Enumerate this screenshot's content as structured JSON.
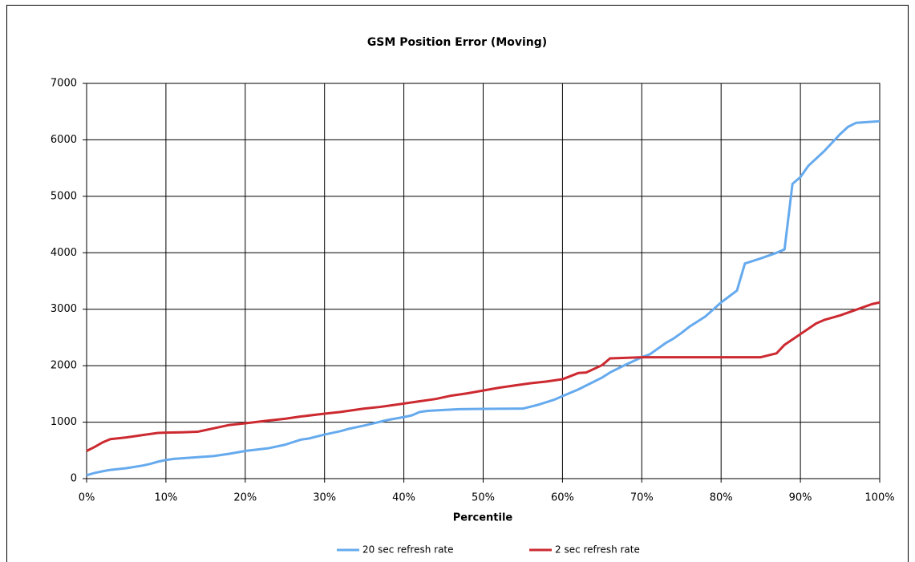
{
  "chart_data": {
    "type": "line",
    "title": "GSM Position Error (Moving)",
    "x_label": "Percentile",
    "xlim": [
      0,
      100
    ],
    "xticks": [
      {
        "value": 0,
        "label": "0%"
      },
      {
        "value": 10,
        "label": "10%"
      },
      {
        "value": 20,
        "label": "20%"
      },
      {
        "value": 30,
        "label": "30%"
      },
      {
        "value": 40,
        "label": "40%"
      },
      {
        "value": 50,
        "label": "50%"
      },
      {
        "value": 60,
        "label": "60%"
      },
      {
        "value": 70,
        "label": "70%"
      },
      {
        "value": 80,
        "label": "80%"
      },
      {
        "value": 90,
        "label": "90%"
      },
      {
        "value": 100,
        "label": "100%"
      }
    ],
    "ylim": [
      0,
      7000
    ],
    "yticks": [
      0,
      1000,
      2000,
      3000,
      4000,
      5000,
      6000,
      7000
    ],
    "grid": true,
    "legend": "bottom",
    "series": [
      {
        "name": "20 sec refresh rate",
        "color": "#66aaee",
        "x": [
          0,
          1,
          2,
          3,
          5,
          7,
          8,
          9,
          10,
          11,
          14,
          16,
          18,
          20,
          23,
          25,
          27,
          28,
          30,
          32,
          33,
          35,
          38,
          40,
          41,
          42,
          43,
          45,
          47,
          50,
          55,
          57,
          59,
          60,
          62,
          64,
          65,
          66,
          68,
          70,
          71,
          73,
          74,
          75,
          76,
          78,
          80,
          82,
          83,
          85,
          87,
          88,
          89,
          90,
          91,
          93,
          95,
          96,
          97,
          100
        ],
        "values": [
          60,
          100,
          130,
          155,
          185,
          230,
          260,
          300,
          330,
          350,
          380,
          400,
          440,
          490,
          540,
          600,
          690,
          710,
          780,
          840,
          880,
          940,
          1040,
          1090,
          1120,
          1180,
          1200,
          1215,
          1230,
          1235,
          1240,
          1310,
          1400,
          1460,
          1580,
          1720,
          1790,
          1880,
          2020,
          2150,
          2200,
          2400,
          2480,
          2580,
          2690,
          2870,
          3120,
          3330,
          3810,
          3900,
          4000,
          4060,
          5220,
          5340,
          5540,
          5800,
          6100,
          6230,
          6300,
          6330
        ]
      },
      {
        "name": "2 sec refresh rate",
        "color": "#cc2a30",
        "x": [
          0,
          1,
          2,
          3,
          5,
          7,
          9,
          10,
          12,
          14,
          16,
          18,
          20,
          23,
          25,
          27,
          30,
          32,
          35,
          37,
          40,
          42,
          44,
          46,
          48,
          50,
          52,
          54,
          56,
          58,
          60,
          62,
          63,
          65,
          66,
          70,
          75,
          80,
          85,
          87,
          88,
          90,
          92,
          93,
          95,
          97,
          99,
          100
        ],
        "values": [
          490,
          560,
          640,
          700,
          730,
          770,
          810,
          815,
          820,
          830,
          890,
          950,
          980,
          1030,
          1060,
          1100,
          1150,
          1180,
          1240,
          1270,
          1330,
          1370,
          1410,
          1470,
          1510,
          1560,
          1610,
          1650,
          1690,
          1720,
          1760,
          1870,
          1880,
          2010,
          2130,
          2150,
          2150,
          2150,
          2150,
          2220,
          2370,
          2560,
          2750,
          2810,
          2890,
          2990,
          3090,
          3120
        ]
      }
    ]
  }
}
